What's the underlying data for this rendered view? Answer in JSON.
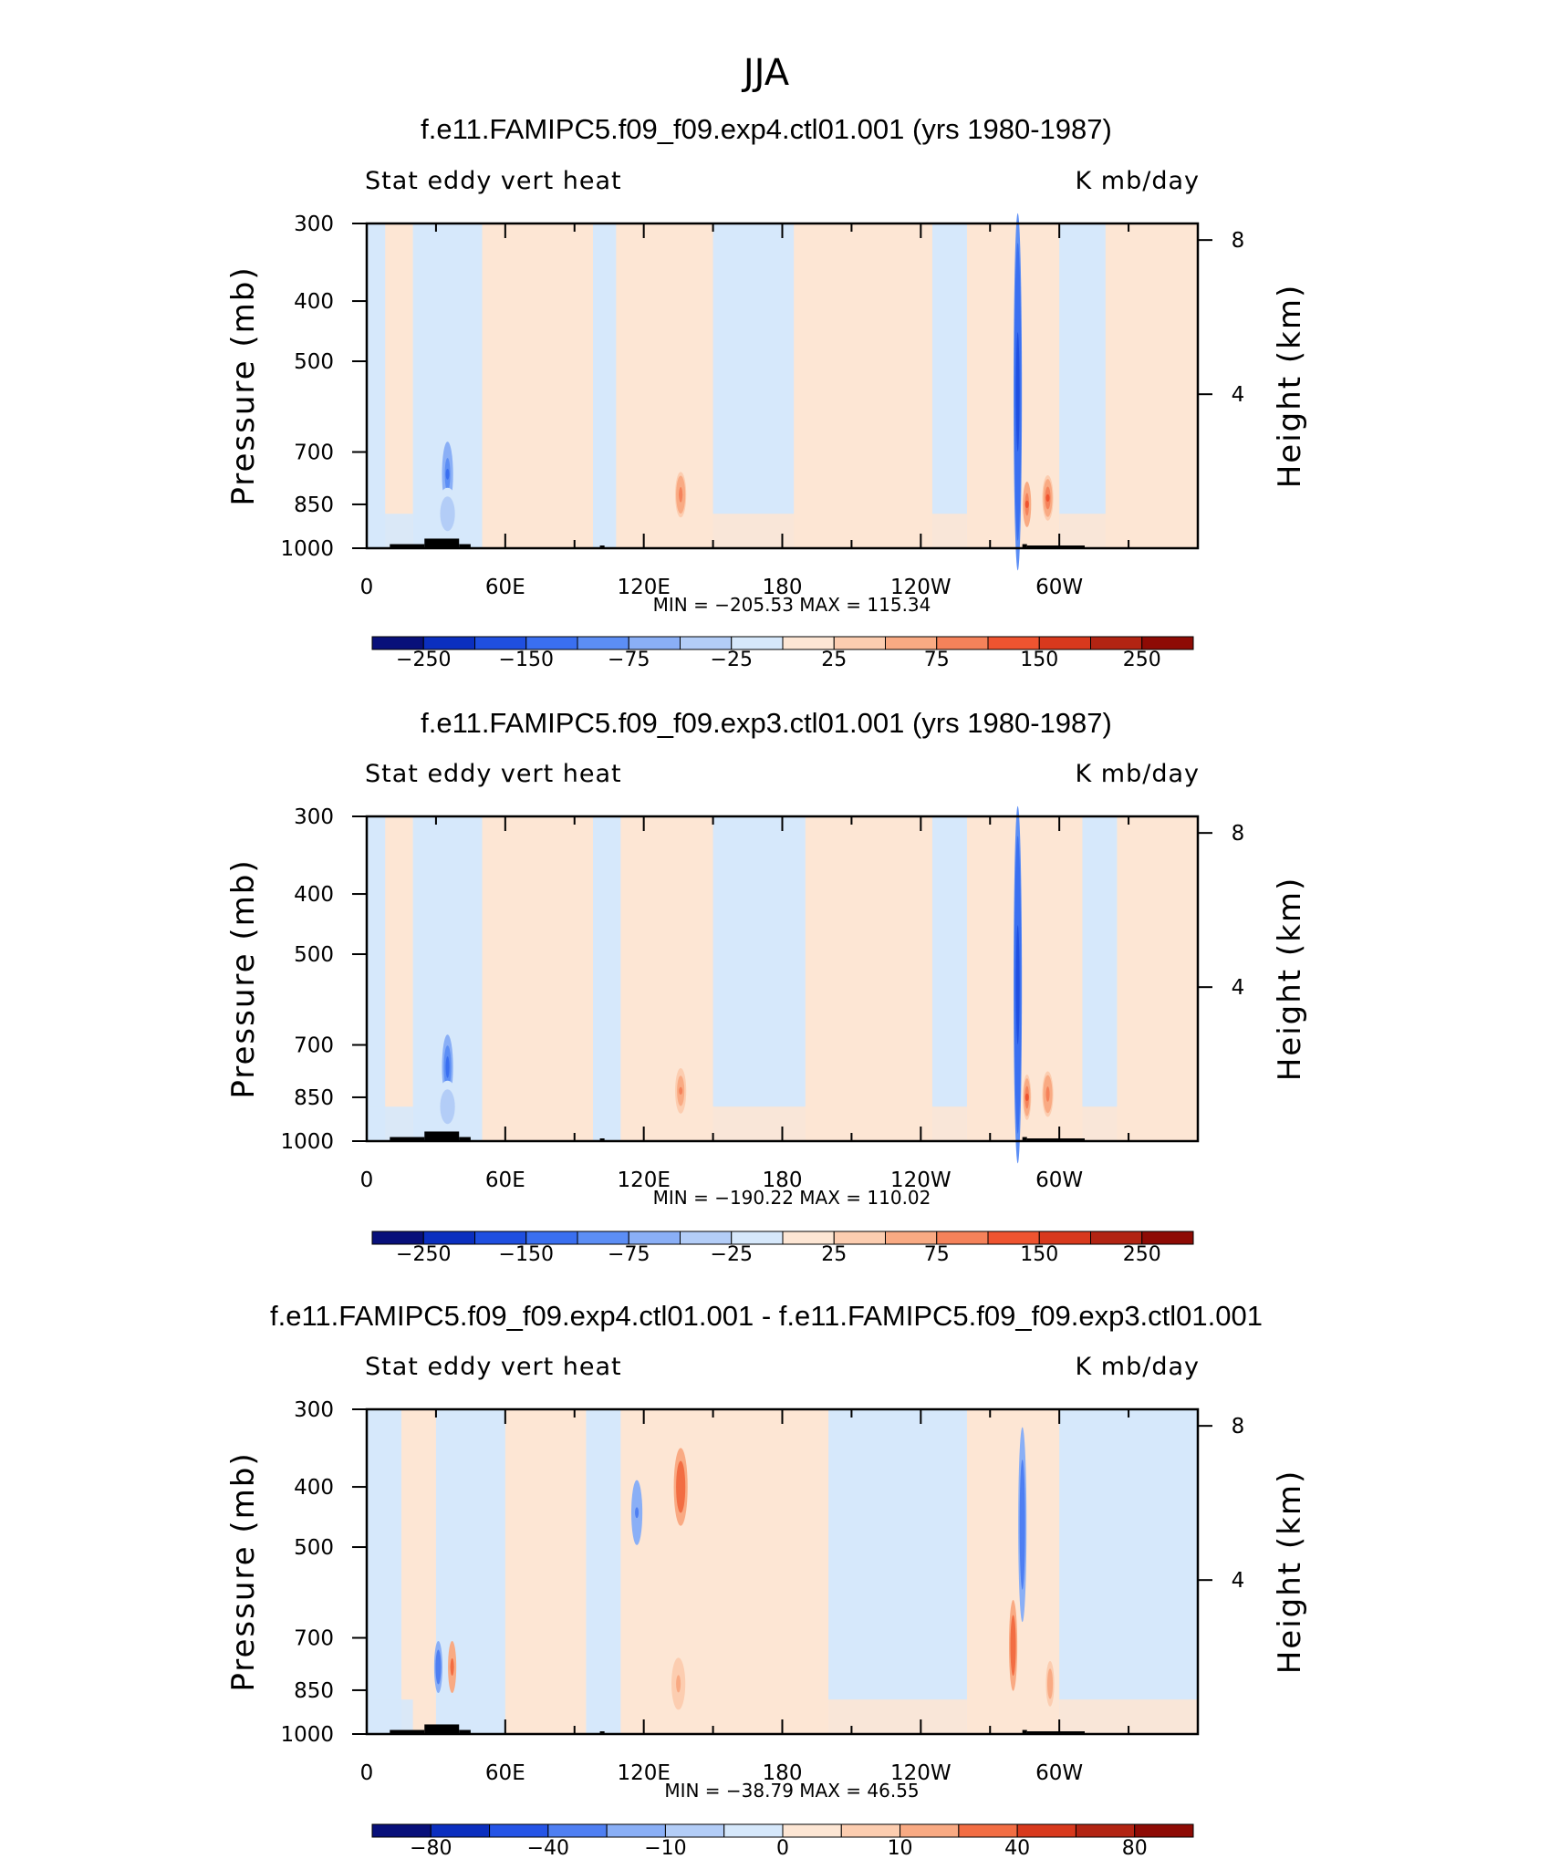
{
  "figure": {
    "suptitle": "JJA"
  },
  "chart_data": [
    {
      "type": "heatmap",
      "title": "f.e11.FAMIPC5.f09_f09.exp4.ctl01.001 (yrs 1980-1987)",
      "left_label": "Stat eddy vert heat",
      "right_label": "K mb/day",
      "ylabel": "Pressure (mb)",
      "y2label": "Height (km)",
      "x_ticks": [
        "0",
        "60E",
        "120E",
        "180",
        "120W",
        "60W"
      ],
      "y_ticks": [
        "300",
        "400",
        "500",
        "700",
        "850",
        "1000"
      ],
      "y2_ticks": [
        "8",
        "4"
      ],
      "ylim": [
        1000,
        300
      ],
      "xlim": [
        0,
        360
      ],
      "min_max": "MIN = −205.53   MAX = 115.34",
      "min": -205.53,
      "max": 115.34,
      "colorbar_labels": [
        "−250",
        "−150",
        "−75",
        "−25",
        "25",
        "75",
        "150",
        "250"
      ],
      "colorbar_levels": [
        -300,
        -250,
        -200,
        -150,
        -100,
        -75,
        -50,
        -25,
        0,
        25,
        50,
        75,
        100,
        150,
        200,
        250,
        300
      ]
    },
    {
      "type": "heatmap",
      "title": "f.e11.FAMIPC5.f09_f09.exp3.ctl01.001 (yrs 1980-1987)",
      "left_label": "Stat eddy vert heat",
      "right_label": "K mb/day",
      "ylabel": "Pressure (mb)",
      "y2label": "Height (km)",
      "x_ticks": [
        "0",
        "60E",
        "120E",
        "180",
        "120W",
        "60W"
      ],
      "y_ticks": [
        "300",
        "400",
        "500",
        "700",
        "850",
        "1000"
      ],
      "y2_ticks": [
        "8",
        "4"
      ],
      "ylim": [
        1000,
        300
      ],
      "xlim": [
        0,
        360
      ],
      "min_max": "MIN = −190.22   MAX = 110.02",
      "min": -190.22,
      "max": 110.02,
      "colorbar_labels": [
        "−250",
        "−150",
        "−75",
        "−25",
        "25",
        "75",
        "150",
        "250"
      ],
      "colorbar_levels": [
        -300,
        -250,
        -200,
        -150,
        -100,
        -75,
        -50,
        -25,
        0,
        25,
        50,
        75,
        100,
        150,
        200,
        250,
        300
      ]
    },
    {
      "type": "heatmap",
      "title": "f.e11.FAMIPC5.f09_f09.exp4.ctl01.001 - f.e11.FAMIPC5.f09_f09.exp3.ctl01.001",
      "left_label": "Stat eddy vert heat",
      "right_label": "K mb/day",
      "ylabel": "Pressure (mb)",
      "y2label": "Height (km)",
      "x_ticks": [
        "0",
        "60E",
        "120E",
        "180",
        "120W",
        "60W"
      ],
      "y_ticks": [
        "300",
        "400",
        "500",
        "700",
        "850",
        "1000"
      ],
      "y2_ticks": [
        "8",
        "4"
      ],
      "ylim": [
        1000,
        300
      ],
      "xlim": [
        0,
        360
      ],
      "min_max": "MIN = −38.79   MAX =  46.55",
      "min": -38.79,
      "max": 46.55,
      "colorbar_labels": [
        "−80",
        "−40",
        "−10",
        "0",
        "10",
        "40",
        "80"
      ],
      "colorbar_levels": [
        -100,
        -80,
        -60,
        -40,
        -20,
        -10,
        -5,
        0,
        5,
        10,
        20,
        40,
        60,
        80,
        100
      ]
    }
  ],
  "colors": {
    "colorbar_16": [
      "#08107a",
      "#0b2fbf",
      "#1f4fe0",
      "#3a6ff0",
      "#5c8ef5",
      "#8aaff6",
      "#b3cdf7",
      "#d6e8fb",
      "#fde6d4",
      "#fccdb0",
      "#f9aa83",
      "#f5825a",
      "#ef5430",
      "#d8391d",
      "#b22413",
      "#8e0b05"
    ],
    "colorbar_14": [
      "#08107a",
      "#0b2fbf",
      "#2554e6",
      "#4f7ff2",
      "#8aaff6",
      "#b3cdf7",
      "#d6e8fb",
      "#fde6d4",
      "#fccdb0",
      "#f9aa83",
      "#f26d43",
      "#d8391d",
      "#b22413",
      "#8e0b05"
    ],
    "pos_light": "#fde6d4",
    "neg_light": "#d6e8fb",
    "terrain": "#000000"
  }
}
